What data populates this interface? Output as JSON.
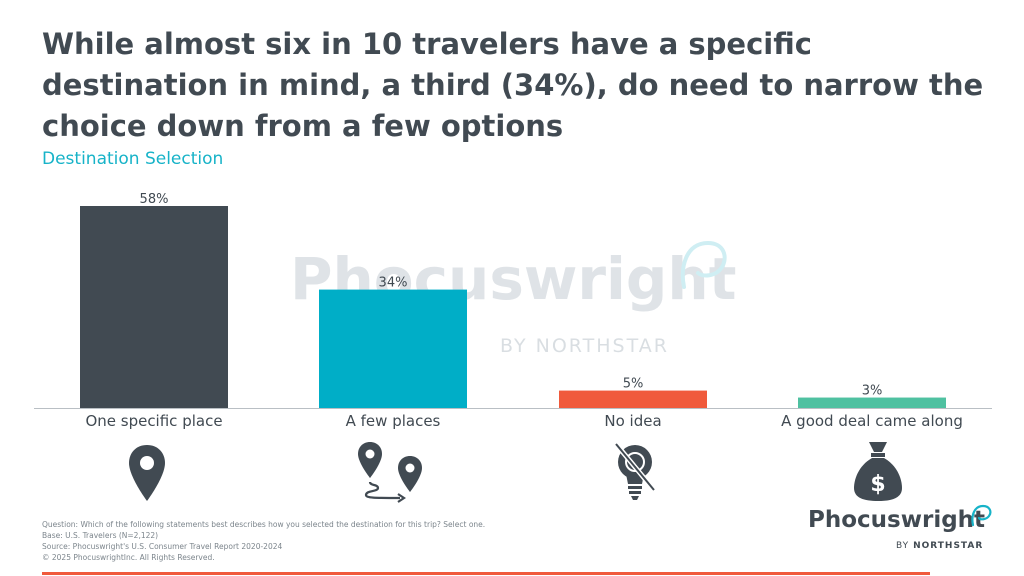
{
  "title": "While almost six in 10 travelers have a specific destination in mind, a third (34%), do need to narrow the choice down from a few options",
  "subtitle": "Destination Selection",
  "chart_data": {
    "type": "bar",
    "categories": [
      "One specific place",
      "A few places",
      "No idea",
      "A good deal came along"
    ],
    "values": [
      58,
      34,
      5,
      3
    ],
    "data_labels": [
      "58%",
      "34%",
      "5%",
      "3%"
    ],
    "colors": [
      "#414a52",
      "#00aec7",
      "#f05a3c",
      "#4fc1a1"
    ],
    "ylim": [
      0,
      58
    ],
    "grid": false
  },
  "icons": [
    "map-pin-icon",
    "route-between-pins-icon",
    "crossed-lightbulb-icon",
    "money-bag-icon"
  ],
  "icon_money_symbol": "$",
  "watermark": {
    "brand": "Phocuswright",
    "byline": "BY NORTHSTAR"
  },
  "footnotes": {
    "question": "Question: Which of the following statements best describes how you selected the destination for this trip? Select one.",
    "base": "Base: U.S. Travelers (N=2,122)",
    "source": "Source: Phocuswright's U.S. Consumer Travel Report 2020-2024",
    "copyright": "© 2025 PhocuswrightInc. All Rights Reserved."
  },
  "logo": {
    "brand": "Phocuswright",
    "by": "BY",
    "northstar": "NORTHSTAR"
  },
  "colors": {
    "accent": "#17b3c8",
    "dark": "#414a52",
    "orange": "#f05a3c"
  }
}
